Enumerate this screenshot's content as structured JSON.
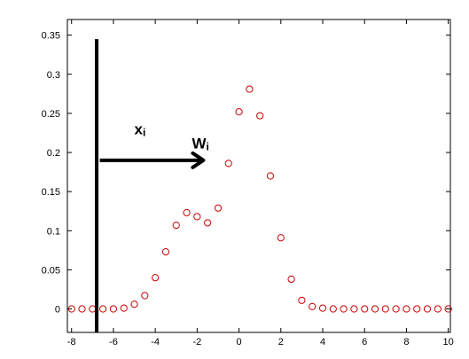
{
  "chart_data": {
    "type": "scatter",
    "title": "",
    "xlabel": "",
    "ylabel": "",
    "xlim": [
      -8.2,
      10.1
    ],
    "ylim": [
      -0.03,
      0.37
    ],
    "xticks": [
      "-8",
      "-6",
      "-4",
      "-2",
      "0",
      "2",
      "4",
      "6",
      "8",
      "10"
    ],
    "yticks": [
      "0",
      "0.05",
      "0.1",
      "0.15",
      "0.2",
      "0.25",
      "0.3",
      "0.35"
    ],
    "grid": false,
    "marker": "open-circle",
    "marker_color": "#cc0000",
    "series": [
      {
        "x": [
          -8,
          -7.5,
          -7,
          -6.5,
          -6,
          -5.5,
          -5,
          -4.5,
          -4,
          -3.5,
          -3,
          -2.5,
          -2,
          -1.5,
          -1,
          -0.5,
          0,
          0.5,
          1,
          1.5,
          2,
          2.5,
          3,
          3.5,
          4,
          4.5,
          5,
          5.5,
          6,
          6.5,
          7,
          7.5,
          8,
          8.5,
          9,
          9.5,
          10
        ],
        "y": [
          0,
          0,
          0,
          0,
          0,
          0.001,
          0.006,
          0.017,
          0.04,
          0.073,
          0.107,
          0.123,
          0.118,
          0.11,
          0.129,
          0.186,
          0.252,
          0.281,
          0.247,
          0.17,
          0.091,
          0.038,
          0.011,
          0.003,
          0.001,
          0,
          0,
          0,
          0,
          0,
          0,
          0,
          0,
          0,
          0,
          0,
          0
        ]
      }
    ],
    "annotations": {
      "vertical_line_x": -6.8,
      "vertical_line_y": [
        -0.03,
        0.345
      ],
      "arrow_from_x": -6.65,
      "arrow_to_x": -1.7,
      "arrow_y": 0.19,
      "xi_label": "x",
      "xi_sub": "i",
      "wi_label": "W",
      "wi_sub": "i"
    }
  }
}
